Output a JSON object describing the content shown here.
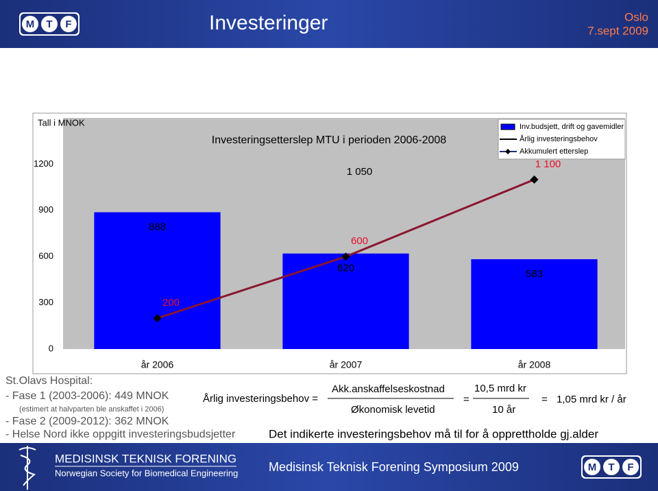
{
  "header": {
    "title": "Investeringer",
    "location": "Oslo",
    "date": "7.sept 2009",
    "logo_letters": [
      "M",
      "T",
      "F"
    ]
  },
  "chart_data": {
    "type": "bar",
    "title": "Investeringsetterslep MTU i perioden 2006-2008",
    "y_unit_label": "Tall i MNOK",
    "categories": [
      "år 2006",
      "år 2007",
      "år 2008"
    ],
    "ylim": [
      0,
      1500
    ],
    "yticks": [
      0,
      300,
      600,
      900,
      1200
    ],
    "legend": "top-right",
    "series": [
      {
        "name": "Inv.budsjett, drift og gavemidler",
        "type": "bar",
        "color": "#0000ff",
        "label_color": "#000000",
        "values": [
          888,
          620,
          583
        ]
      },
      {
        "name": "Årlig investeringsbehov",
        "type": "line",
        "color": "#000000",
        "label_color": "#000000",
        "values": [
          null,
          1050,
          null
        ],
        "value_labels": [
          null,
          "1 050",
          null
        ]
      },
      {
        "name": "Akkumulert etterslep",
        "type": "line",
        "marker": "diamond",
        "color": "#8b1530",
        "label_color": "#e8102a",
        "values": [
          200,
          600,
          1100
        ],
        "value_labels": [
          "200",
          "600",
          "1 100"
        ]
      }
    ]
  },
  "notes": [
    "St.Olavs Hospital:",
    "- Fase 1 (2003-2006): 449 MNOK",
    "(estimert at halvparten ble anskaffet i 2006)",
    "- Fase 2 (2009-2012): 362 MNOK",
    "- Helse Nord ikke oppgitt investeringsbudsjetter"
  ],
  "formula": {
    "lhs": "Årlig investeringsbehov =",
    "numerator": "Akk.anskaffelseskostnad",
    "denominator": "Økonomisk levetid",
    "equals_1": "=",
    "value_numerator": "10,5 mrd kr",
    "value_denominator": "10 år",
    "equals_2": "=",
    "result": "1,05 mrd kr / år"
  },
  "conclusion": "Det indikerte investeringsbehov må til for å opprettholde gj.alder",
  "footer": {
    "org_name": "MEDISINSK TEKNISK FORENING",
    "org_name_en": "Norwegian Society for Biomedical Engineering",
    "event": "Medisinsk Teknisk Forening Symposium 2009"
  }
}
